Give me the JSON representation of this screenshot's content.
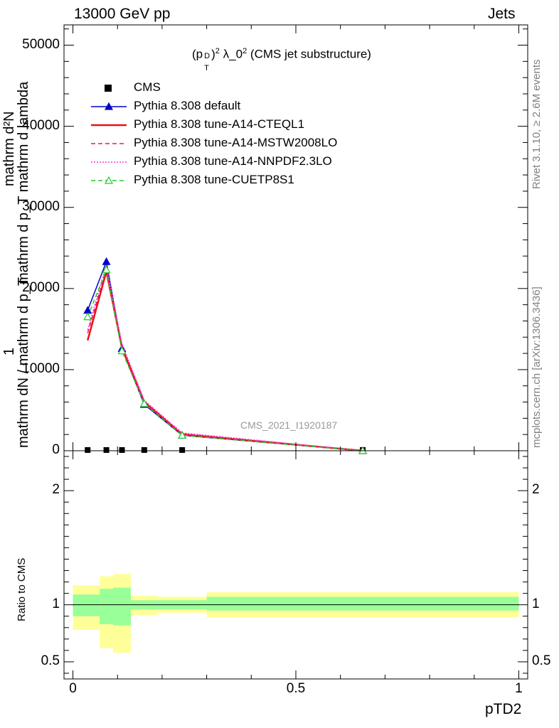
{
  "header": {
    "left": "13000 GeV pp",
    "right": "Jets"
  },
  "plot_title": {
    "main": "λ_0",
    "exp": "2",
    "suffix": " (CMS jet substructure)",
    "p": "(p",
    "sup": "D",
    "sub": "T",
    "close": ")",
    "close_exp": "2"
  },
  "side_texts": {
    "rivet": "Rivet 3.1.10, ≥ 2.6M events",
    "mcplots": "mcplots.cern.ch [arXiv:1306.3436]"
  },
  "watermark": "CMS_2021_I1920187",
  "ylabel_top": {
    "frac_one": "1",
    "frac_den": "mathrm dN / mathrm d p_T",
    "num": "mathrm d²N",
    "den": "mathrm d p_T mathrm d lambda"
  },
  "ylabel_bottom": "Ratio to CMS",
  "xlabel": "pTD2",
  "legend": [
    {
      "label": "CMS",
      "color": "#000000",
      "style": "square"
    },
    {
      "label": "Pythia 8.308 default",
      "color": "#0000cc",
      "style": "solid-triangle"
    },
    {
      "label": "Pythia 8.308 tune-A14-CTEQL1",
      "color": "#ee1111",
      "style": "solid-thick"
    },
    {
      "label": "Pythia 8.308 tune-A14-MSTW2008LO",
      "color": "#ee1177",
      "style": "dashed"
    },
    {
      "label": "Pythia 8.308 tune-A14-NNPDF2.3LO",
      "color": "#ff33cc",
      "style": "dotted"
    },
    {
      "label": "Pythia 8.308 tune-CUETP8S1",
      "color": "#22cc22",
      "style": "dashed-open-triangle"
    }
  ],
  "chart_data": [
    {
      "type": "line",
      "panel": "main",
      "xlim": [
        -0.02,
        1.02
      ],
      "ylim": [
        0,
        52500
      ],
      "yticks": [
        0,
        10000,
        20000,
        30000,
        40000,
        50000
      ],
      "ytick_labels": [
        "0",
        "10000",
        "20000",
        "30000",
        "40000",
        "50000"
      ],
      "x": [
        0.033,
        0.075,
        0.11,
        0.16,
        0.245,
        0.65
      ],
      "series": [
        {
          "name": "CMS",
          "values": [
            0,
            0,
            0,
            0,
            0,
            0
          ]
        },
        {
          "name": "Pythia 8.308 default",
          "values": [
            17300,
            23300,
            12600,
            5700,
            1900,
            0
          ]
        },
        {
          "name": "Pythia 8.308 tune-A14-CTEQL1",
          "values": [
            13600,
            22100,
            12700,
            6000,
            2000,
            0
          ]
        },
        {
          "name": "Pythia 8.308 tune-A14-MSTW2008LO",
          "values": [
            14500,
            22400,
            12900,
            6100,
            2100,
            0
          ]
        },
        {
          "name": "Pythia 8.308 tune-A14-NNPDF2.3LO",
          "values": [
            14900,
            22900,
            13200,
            6200,
            2200,
            0
          ]
        },
        {
          "name": "Pythia 8.308 tune-CUETP8S1",
          "values": [
            16500,
            22300,
            12300,
            5800,
            1900,
            0
          ]
        }
      ]
    },
    {
      "type": "area",
      "panel": "ratio",
      "xlim": [
        -0.02,
        1.02
      ],
      "ylim": [
        0.35,
        2.35
      ],
      "yticks": [
        0.5,
        1,
        2
      ],
      "ytick_labels": [
        "0.5",
        "1",
        "2"
      ],
      "xticks": [
        0,
        0.5,
        1
      ],
      "xtick_labels": [
        "0",
        "0.5",
        "1"
      ],
      "bins": [
        0,
        0.06,
        0.09,
        0.13,
        0.19,
        0.3,
        1.0
      ],
      "band_outer": {
        "color": "#ffff99",
        "low": [
          0.78,
          0.62,
          0.58,
          0.91,
          0.93,
          0.89
        ],
        "high": [
          1.17,
          1.25,
          1.27,
          1.08,
          1.07,
          1.11
        ]
      },
      "band_inner": {
        "color": "#99ff99",
        "low": [
          0.9,
          0.83,
          0.82,
          0.96,
          0.96,
          0.95
        ],
        "high": [
          1.09,
          1.14,
          1.15,
          1.04,
          1.04,
          1.07
        ]
      },
      "reference": 1
    }
  ]
}
